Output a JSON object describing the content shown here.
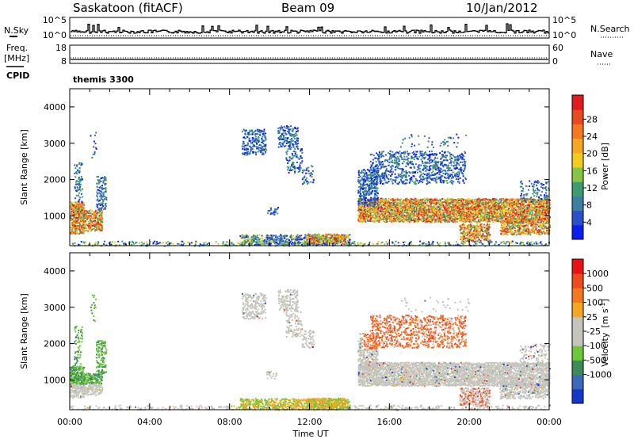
{
  "header": {
    "station": "Saskatoon (fitACF)",
    "beam": "Beam 09",
    "date": "10/Jan/2012"
  },
  "strip_labels": {
    "nsky": "N.Sky",
    "nsearch": "N.Search",
    "freq_line1": "Freq.",
    "freq_line2": "[MHz]",
    "nave": "Nave",
    "cpid": "CPID",
    "cpid_value": "themis 3300"
  },
  "chart_data": [
    {
      "type": "line",
      "panel": "noise",
      "y_ticks_left": [
        "10^5",
        "10^0"
      ],
      "y_ticks_right": [
        "10^5",
        "10^0"
      ],
      "series": [
        {
          "name": "N.Sky",
          "style": "solid step"
        },
        {
          "name": "N.Search",
          "style": "dotted"
        }
      ]
    },
    {
      "type": "line",
      "panel": "frequency",
      "y_ticks_left": [
        "18",
        "8"
      ],
      "y_ticks_right": [
        "60",
        "0"
      ],
      "series": [
        {
          "name": "Freq. [MHz]",
          "style": "solid",
          "value": 10
        },
        {
          "name": "Nave",
          "style": "dotted",
          "value": 20
        }
      ]
    },
    {
      "type": "heatmap",
      "panel": "power",
      "ylabel": "Slant Range [km]",
      "ylim": [
        180,
        4500
      ],
      "y_ticks": [
        "1000",
        "2000",
        "3000",
        "4000"
      ],
      "xlim_hours": [
        0,
        24
      ],
      "colorbar": {
        "label": "Power [dB]",
        "ticks": [
          "4",
          "8",
          "12",
          "16",
          "20",
          "24",
          "28"
        ],
        "colors": [
          "#0a1ef0",
          "#2a52c8",
          "#3d7fa0",
          "#3e9b6e",
          "#86c443",
          "#f2cb1f",
          "#f5a623",
          "#f47820",
          "#e84a1e",
          "#e01b1b"
        ]
      }
    },
    {
      "type": "heatmap",
      "panel": "velocity",
      "ylabel": "Slant Range [km]",
      "ylim": [
        180,
        4500
      ],
      "y_ticks": [
        "1000",
        "2000",
        "3000",
        "4000"
      ],
      "xlim_hours": [
        0,
        24
      ],
      "colorbar": {
        "label_main": "Velocity",
        "label_unit": "[m s",
        "label_sup": "-1",
        "label_end": "]",
        "ticks": [
          "1000",
          "500",
          "100",
          "25",
          "-25",
          "-100",
          "-500",
          "-1000"
        ],
        "colors": [
          "#1638c8",
          "#3a6ab8",
          "#3e8a58",
          "#6cc838",
          "#c4c4bc",
          "#c4c4bc",
          "#f5a623",
          "#f47820",
          "#ef4a1e",
          "#e81414"
        ]
      }
    }
  ],
  "x_axis": {
    "label": "Time UT",
    "ticks": [
      "00:00",
      "04:00",
      "08:00",
      "12:00",
      "16:00",
      "20:00",
      "00:00"
    ]
  }
}
